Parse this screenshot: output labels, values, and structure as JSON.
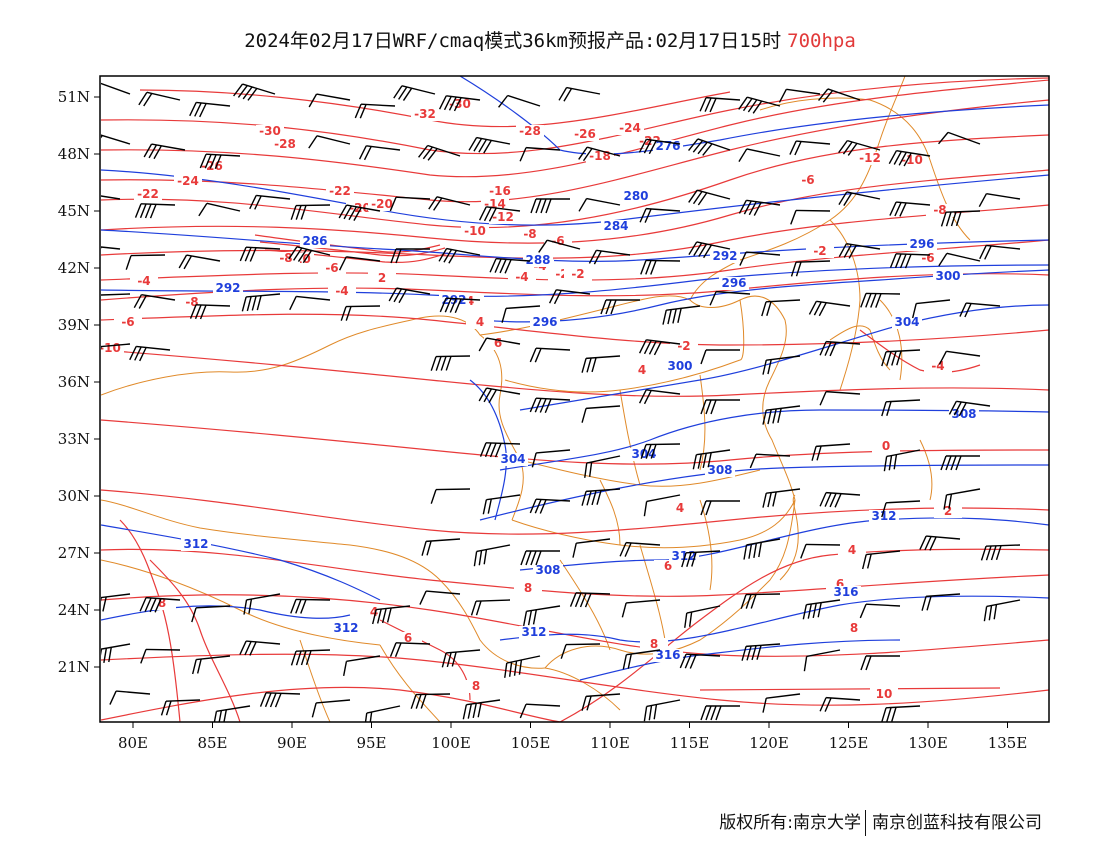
{
  "header": {
    "title": "2024年02月17日WRF/cmaq模式36km预报产品:02月17日15时",
    "level": "700hpa"
  },
  "axes": {
    "lat_labels": [
      "51N",
      "48N",
      "45N",
      "42N",
      "39N",
      "36N",
      "33N",
      "30N",
      "27N",
      "24N",
      "21N"
    ],
    "lon_labels": [
      "80E",
      "85E",
      "90E",
      "95E",
      "100E",
      "105E",
      "110E",
      "115E",
      "120E",
      "125E",
      "130E",
      "135E"
    ]
  },
  "colors": {
    "temperature": "#e83a3a",
    "geopotential": "#1f3fdc",
    "boundary": "#e08a2a",
    "wind": "#000000",
    "frame": "#000000"
  },
  "legend": {
    "temperature_labels": [
      "-32",
      "-30",
      "-28",
      "-26",
      "-24",
      "-22",
      "-20",
      "-18",
      "-16",
      "-14",
      "-12",
      "-10",
      "-8",
      "-6",
      "-4",
      "-2",
      "0",
      "2",
      "4",
      "6",
      "8",
      "10"
    ],
    "height_labels": [
      "276",
      "280",
      "284",
      "286",
      "288",
      "292",
      "296",
      "300",
      "304",
      "308",
      "312",
      "316"
    ]
  },
  "footer": {
    "left": "版权所有:南京大学",
    "right": "南京创蓝科技有限公司"
  }
}
